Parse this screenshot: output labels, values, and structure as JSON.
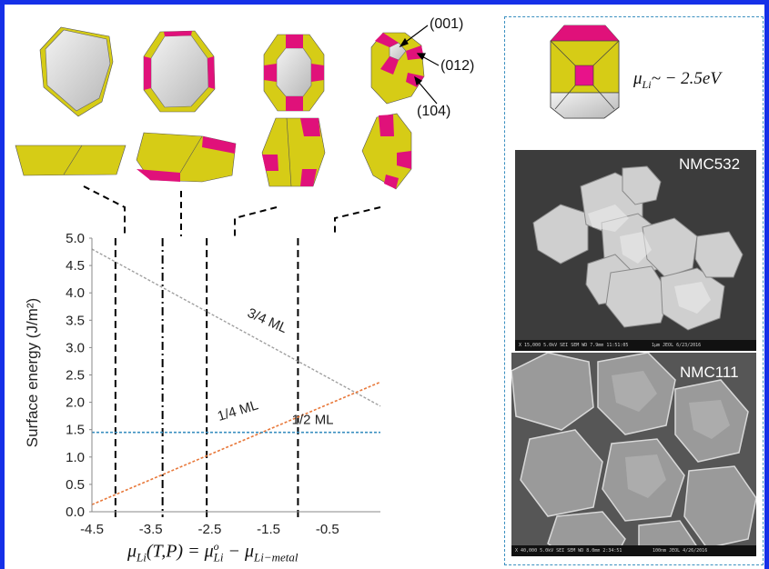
{
  "facet_labels": {
    "f001": "(001)",
    "f012": "(012)",
    "f104": "(104)"
  },
  "mu_annotation": "μ",
  "mu_annotation_sub": "Li",
  "mu_annotation_value": "~ − 2.5eV",
  "chart_data": {
    "type": "line",
    "ylabel": "Surface energy (J/m²)",
    "xlabel": "μ",
    "xlabel_sub": "Li",
    "xlabel_rest": "(T,P) = μ",
    "xlabel_sub2": "Li",
    "xlabel_sup2": "o",
    "xlabel_minus": " − μ",
    "xlabel_sub3": "Li−metal",
    "xlim": [
      -4.5,
      0.4
    ],
    "ylim": [
      0.0,
      5.0
    ],
    "xticks": [
      "-4.5",
      "-3.5",
      "-2.5",
      "-1.5",
      "-0.5"
    ],
    "xtick_values": [
      -4.5,
      -3.5,
      -2.5,
      -1.5,
      -0.5
    ],
    "yticks": [
      "0.0",
      "0.5",
      "1.0",
      "1.5",
      "2.0",
      "2.5",
      "3.0",
      "3.5",
      "4.0",
      "4.5",
      "5.0"
    ],
    "ytick_values": [
      0,
      0.5,
      1,
      1.5,
      2,
      2.5,
      3,
      3.5,
      4,
      4.5,
      5
    ],
    "series": [
      {
        "name": "3/4 ML",
        "color": "#a0a0a0",
        "x": [
          -4.5,
          0.4
        ],
        "y": [
          4.8,
          1.93
        ]
      },
      {
        "name": "1/4 ML",
        "color": "#e8783a",
        "x": [
          -4.5,
          0.4
        ],
        "y": [
          0.13,
          2.37
        ]
      },
      {
        "name": "1/2 ML",
        "color": "#3a8fc0",
        "x": [
          -4.5,
          0.4
        ],
        "y": [
          1.45,
          1.45
        ]
      }
    ],
    "vlines_x": [
      -4.1,
      -3.3,
      -2.55,
      -1.0
    ]
  },
  "sem_images": [
    {
      "label": "NMC532",
      "bar_text": "X 15,000   5.0kV  SEI   SEM   WD 7.9mm  11:51:05",
      "scale_text": "1μm   JEOL   6/23/2016"
    },
    {
      "label": "NMC111",
      "bar_text": "X 40,000   5.0kV  SEI   SEM   WD 8.0mm  2:34:51",
      "scale_text": "100nm  JEOL   4/26/2016"
    }
  ],
  "colors": {
    "facet_yellow": "#d6cc16",
    "facet_magenta": "#e0117a",
    "facet_gray": "#d2d2d2",
    "frame": "#1530e8"
  }
}
